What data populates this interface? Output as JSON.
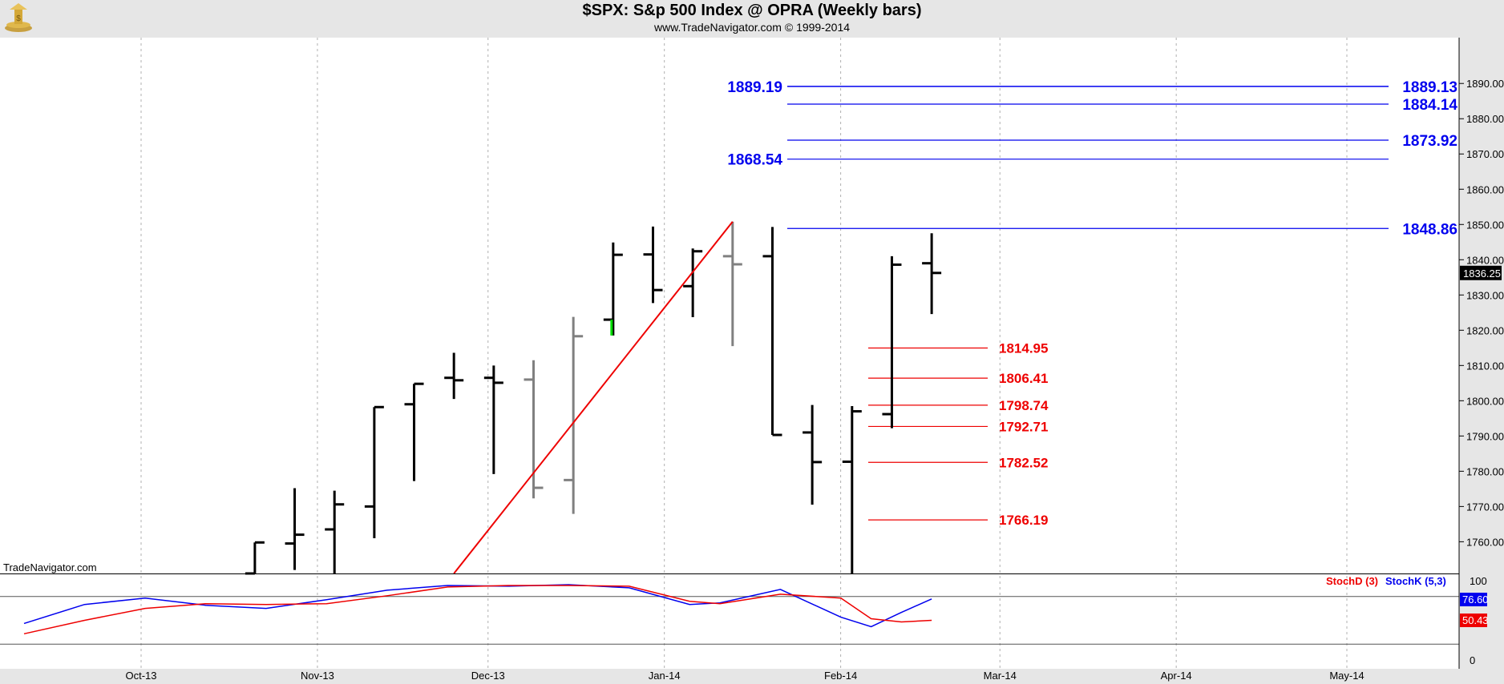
{
  "header": {
    "title": "$SPX:  S&p 500 Index @ OPRA  (Weekly bars)",
    "subtitle": "www.TradeNavigator.com © 1999-2014",
    "watermark": "TradeNavigator.com"
  },
  "colors": {
    "bar_up": "#000000",
    "bar_gray": "#808080",
    "bar_green": "#00dd00",
    "fib_blue": "#0000ee",
    "fib_red": "#ee0000",
    "trendline": "#ee0000",
    "stoch_d": "#ee0000",
    "stoch_k": "#0000ee",
    "last_price_bg": "#000000"
  },
  "chart_data": [
    {
      "type": "ohlc",
      "title": "$SPX:  S&p 500 Index @ OPRA  (Weekly bars)",
      "x_ticks": [
        "Oct-13",
        "Nov-13",
        "Dec-13",
        "Jan-14",
        "Feb-14",
        "Mar-14",
        "Apr-14",
        "May-14"
      ],
      "y_ticks": [
        "1760.00",
        "1770.00",
        "1780.00",
        "1790.00",
        "1800.00",
        "1810.00",
        "1820.00",
        "1830.00",
        "1840.00",
        "1850.00",
        "1860.00",
        "1870.00",
        "1880.00",
        "1890.00"
      ],
      "ylim": [
        1751,
        1903
      ],
      "last_price": "1836.25",
      "bars": [
        {
          "week": "2013-10-21",
          "open": 1745.0,
          "high": 1759.8,
          "low": 1740.0,
          "close": 1759.8,
          "color": "black"
        },
        {
          "week": "2013-10-28",
          "open": 1759.5,
          "high": 1775.2,
          "low": 1752.0,
          "close": 1762.0,
          "color": "black"
        },
        {
          "week": "2013-11-04",
          "open": 1763.5,
          "high": 1774.5,
          "low": 1746.5,
          "close": 1770.6,
          "color": "black"
        },
        {
          "week": "2013-11-11",
          "open": 1770.0,
          "high": 1798.2,
          "low": 1761.0,
          "close": 1798.2,
          "color": "black"
        },
        {
          "week": "2013-11-18",
          "open": 1799.0,
          "high": 1804.8,
          "low": 1777.2,
          "close": 1804.8,
          "color": "black"
        },
        {
          "week": "2013-11-25",
          "open": 1806.5,
          "high": 1813.6,
          "low": 1800.5,
          "close": 1805.8,
          "color": "black"
        },
        {
          "week": "2013-12-02",
          "open": 1806.5,
          "high": 1810.0,
          "low": 1779.2,
          "close": 1805.1,
          "color": "black"
        },
        {
          "week": "2013-12-09",
          "open": 1806.0,
          "high": 1811.5,
          "low": 1772.3,
          "close": 1775.3,
          "color": "gray"
        },
        {
          "week": "2013-12-16",
          "open": 1777.5,
          "high": 1823.8,
          "low": 1767.9,
          "close": 1818.3,
          "color": "gray"
        },
        {
          "week": "2013-12-23",
          "open": 1823.0,
          "high": 1844.9,
          "low": 1818.5,
          "close": 1841.4,
          "color": "black",
          "green_low": true
        },
        {
          "week": "2013-12-30",
          "open": 1841.5,
          "high": 1849.4,
          "low": 1827.7,
          "close": 1831.4,
          "color": "black"
        },
        {
          "week": "2014-01-06",
          "open": 1832.5,
          "high": 1843.2,
          "low": 1823.7,
          "close": 1842.4,
          "color": "black"
        },
        {
          "week": "2014-01-13",
          "open": 1841.0,
          "high": 1850.8,
          "low": 1815.5,
          "close": 1838.7,
          "color": "gray"
        },
        {
          "week": "2014-01-20",
          "open": 1841.0,
          "high": 1849.3,
          "low": 1790.3,
          "close": 1790.3,
          "color": "black"
        },
        {
          "week": "2014-01-27",
          "open": 1791.0,
          "high": 1798.8,
          "low": 1770.5,
          "close": 1782.6,
          "color": "black"
        },
        {
          "week": "2014-02-03",
          "open": 1782.7,
          "high": 1798.5,
          "low": 1737.9,
          "close": 1797.0,
          "color": "black"
        },
        {
          "week": "2014-02-10",
          "open": 1796.2,
          "high": 1841.0,
          "low": 1792.2,
          "close": 1838.6,
          "color": "black"
        },
        {
          "week": "2014-02-17",
          "open": 1839.0,
          "high": 1847.5,
          "low": 1824.6,
          "close": 1836.25,
          "color": "black"
        }
      ],
      "trendline": {
        "from": {
          "week": "2013-11-25",
          "price": 1751
        },
        "to": {
          "week": "2014-01-13",
          "price": 1850.8
        }
      },
      "levels_blue_left": [
        {
          "label": "1889.19",
          "price": 1889.19
        },
        {
          "label": "1868.54",
          "price": 1868.54
        }
      ],
      "levels_blue_right": [
        {
          "label": "1889.13",
          "price": 1889.13
        },
        {
          "label": "1884.14",
          "price": 1884.14
        },
        {
          "label": "1873.92",
          "price": 1873.92
        },
        {
          "label": "1848.86",
          "price": 1848.86
        }
      ],
      "levels_red": [
        {
          "label": "1814.95",
          "price": 1814.95
        },
        {
          "label": "1806.41",
          "price": 1806.41
        },
        {
          "label": "1798.74",
          "price": 1798.74
        },
        {
          "label": "1792.71",
          "price": 1792.71
        },
        {
          "label": "1782.52",
          "price": 1782.52
        },
        {
          "label": "1766.19",
          "price": 1766.19
        }
      ]
    },
    {
      "type": "line",
      "indicator": "stochastic",
      "legend": [
        {
          "name": "StochD (3)",
          "color": "#ee0000"
        },
        {
          "name": "StochK (5,3)",
          "color": "#0000ee"
        }
      ],
      "y_ticks": [
        "100",
        "0"
      ],
      "ylim": [
        0,
        100
      ],
      "guide_levels": [
        80,
        20
      ],
      "current_values": {
        "stoch_k": "76.60",
        "stoch_d": "50.43"
      },
      "x_weeks": [
        "2013-07-22",
        "2013-08-05",
        "2013-08-19",
        "2013-09-02",
        "2013-09-16",
        "2013-09-30",
        "2013-10-14",
        "2013-10-28",
        "2013-11-11",
        "2013-11-25",
        "2013-12-09",
        "2013-12-23",
        "2013-12-30",
        "2014-01-13",
        "2014-01-27",
        "2014-02-03",
        "2014-02-10",
        "2014-02-17"
      ],
      "series": [
        {
          "name": "StochK (5,3)",
          "values": [
            46,
            70,
            78,
            69,
            65,
            76,
            88,
            94,
            93,
            95,
            91,
            70,
            72,
            89,
            54,
            42,
            60,
            77
          ]
        },
        {
          "name": "StochD (3)",
          "values": [
            33,
            50,
            65,
            71,
            70,
            71,
            81,
            92,
            94,
            94,
            93,
            74,
            71,
            83,
            78,
            52,
            48,
            50
          ]
        }
      ]
    }
  ]
}
